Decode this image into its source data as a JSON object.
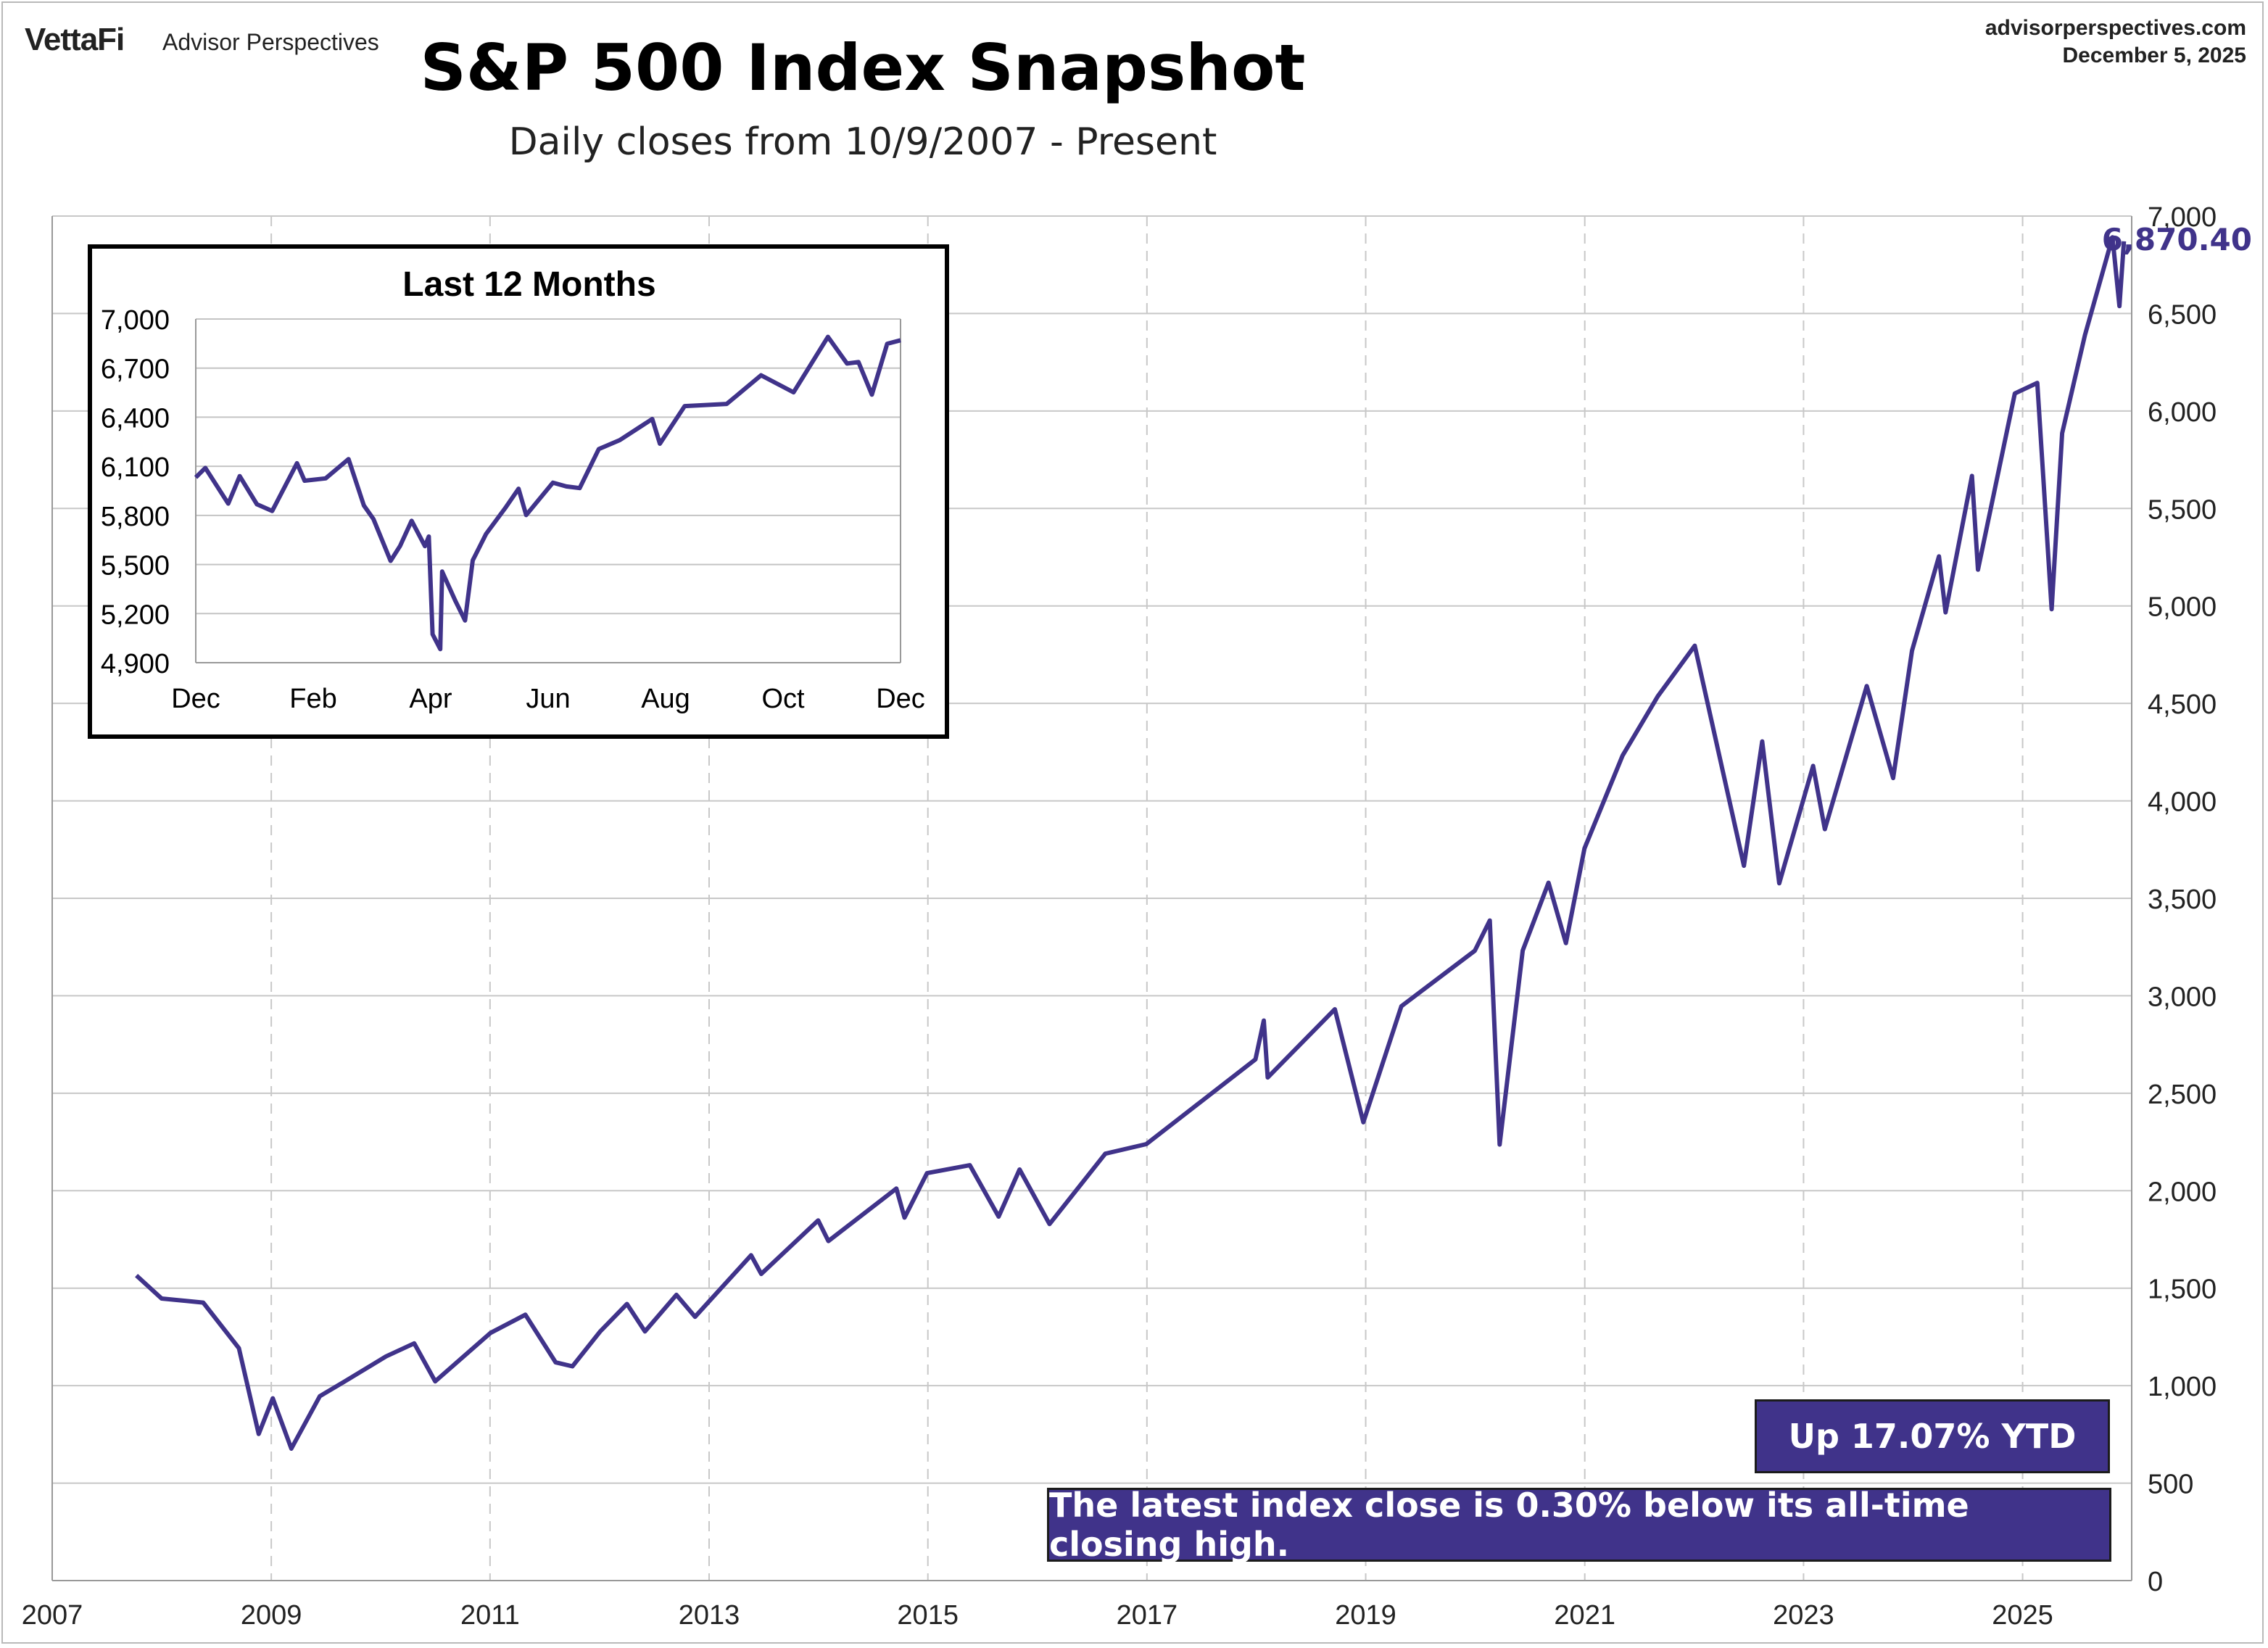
{
  "header": {
    "brand": "VettaFi",
    "brand_sub": "Advisor Perspectives",
    "site": "advisorperspectives.com",
    "date": "December 5, 2025",
    "title": "S&P 500 Index Snapshot",
    "subtitle": "Daily closes from 10/9/2007 - Present"
  },
  "callouts": {
    "last_value": "6,870.40",
    "ytd": "Up 17.07% YTD",
    "ath_note": "The latest index close is 0.30% below its all-time closing high."
  },
  "colors": {
    "line": "#40338a",
    "box": "#40338a",
    "grid": "#c8c8c8"
  },
  "chart_data": [
    {
      "type": "line",
      "title": "S&P 500 Index Snapshot",
      "xlabel": "",
      "ylabel": "",
      "xlim": [
        "2007-01-01",
        "2025-12-31"
      ],
      "ylim": [
        0,
        7000
      ],
      "x_ticks": [
        "2007",
        "2009",
        "2011",
        "2013",
        "2015",
        "2017",
        "2019",
        "2021",
        "2023",
        "2025"
      ],
      "y_ticks": [
        "0",
        "500",
        "1,000",
        "1,500",
        "2,000",
        "2,500",
        "3,000",
        "3,500",
        "4,000",
        "4,500",
        "5,000",
        "5,500",
        "6,000",
        "6,500",
        "7,000"
      ],
      "grid": true,
      "series": [
        {
          "x": [
            "2007-10-09",
            "2008-01-01",
            "2008-05-19",
            "2008-09-15",
            "2008-11-20",
            "2009-01-06",
            "2009-03-09",
            "2009-06-12",
            "2009-09-01",
            "2010-01-19",
            "2010-04-23",
            "2010-07-02",
            "2011-01-03",
            "2011-04-29",
            "2011-08-08",
            "2011-10-03",
            "2012-01-03",
            "2012-04-02",
            "2012-06-01",
            "2012-09-14",
            "2012-11-15",
            "2013-05-21",
            "2013-06-24",
            "2013-12-31",
            "2014-02-03",
            "2014-09-18",
            "2014-10-15",
            "2014-12-29",
            "2015-05-21",
            "2015-08-25",
            "2015-11-03",
            "2016-02-11",
            "2016-08-15",
            "2016-12-30",
            "2017-12-29",
            "2018-01-26",
            "2018-02-08",
            "2018-09-20",
            "2018-12-24",
            "2019-04-30",
            "2019-12-31",
            "2020-02-19",
            "2020-03-23",
            "2020-06-08",
            "2020-09-02",
            "2020-10-30",
            "2020-12-31",
            "2021-05-07",
            "2021-09-02",
            "2022-01-03",
            "2022-06-16",
            "2022-08-16",
            "2022-10-12",
            "2023-02-02",
            "2023-03-13",
            "2023-07-31",
            "2023-10-27",
            "2023-12-29",
            "2024-03-28",
            "2024-04-19",
            "2024-07-16",
            "2024-08-05",
            "2024-12-06",
            "2025-02-19",
            "2025-04-08",
            "2025-05-13",
            "2025-07-28",
            "2025-10-28",
            "2025-11-20",
            "2025-12-05"
          ],
          "values": [
            1565,
            1447,
            1426,
            1192,
            752,
            935,
            677,
            946,
            1020,
            1150,
            1217,
            1022,
            1271,
            1364,
            1119,
            1099,
            1277,
            1419,
            1278,
            1466,
            1353,
            1669,
            1573,
            1848,
            1742,
            2011,
            1862,
            2090,
            2131,
            1867,
            2109,
            1829,
            2190,
            2239,
            2674,
            2873,
            2581,
            2931,
            2351,
            2946,
            3231,
            3386,
            2237,
            3232,
            3580,
            3270,
            3756,
            4232,
            4537,
            4796,
            3667,
            4305,
            3577,
            4179,
            3855,
            4589,
            4117,
            4770,
            5254,
            4967,
            5667,
            5186,
            6090,
            6144,
            4983,
            5886,
            6389,
            6891,
            6538,
            6870.4
          ]
        }
      ]
    },
    {
      "type": "line",
      "title": "Last 12 Months",
      "xlabel": "",
      "ylabel": "",
      "xlim": [
        "2024-12-01",
        "2025-12-05"
      ],
      "ylim": [
        4900,
        7000
      ],
      "x_ticks": [
        "Dec",
        "Feb",
        "Apr",
        "Jun",
        "Aug",
        "Oct",
        "Dec"
      ],
      "y_ticks": [
        "4,900",
        "5,200",
        "5,500",
        "5,800",
        "6,100",
        "6,400",
        "6,700",
        "7,000"
      ],
      "grid": true,
      "series": [
        {
          "x": [
            "2024-12-01",
            "2024-12-06",
            "2024-12-18",
            "2024-12-24",
            "2025-01-02",
            "2025-01-10",
            "2025-01-23",
            "2025-01-27",
            "2025-02-07",
            "2025-02-19",
            "2025-02-27",
            "2025-03-04",
            "2025-03-13",
            "2025-03-18",
            "2025-03-24",
            "2025-03-31",
            "2025-04-02",
            "2025-04-04",
            "2025-04-08",
            "2025-04-09",
            "2025-04-16",
            "2025-04-21",
            "2025-04-25",
            "2025-05-02",
            "2025-05-12",
            "2025-05-19",
            "2025-05-23",
            "2025-06-06",
            "2025-06-13",
            "2025-06-20",
            "2025-06-30",
            "2025-07-11",
            "2025-07-28",
            "2025-08-01",
            "2025-08-14",
            "2025-09-05",
            "2025-09-23",
            "2025-10-10",
            "2025-10-28",
            "2025-11-07",
            "2025-11-13",
            "2025-11-20",
            "2025-11-28",
            "2025-12-05"
          ],
          "values": [
            6032,
            6090,
            5872,
            6040,
            5868,
            5827,
            6119,
            6012,
            6026,
            6144,
            5861,
            5778,
            5522,
            5614,
            5767,
            5612,
            5671,
            5074,
            4983,
            5457,
            5276,
            5158,
            5525,
            5687,
            5844,
            5963,
            5802,
            6000,
            5977,
            5967,
            6205,
            6260,
            6389,
            6238,
            6468,
            6481,
            6656,
            6552,
            6891,
            6728,
            6737,
            6538,
            6849,
            6870.4
          ]
        }
      ]
    }
  ]
}
